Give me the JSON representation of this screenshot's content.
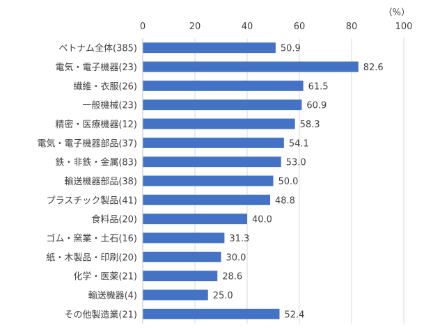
{
  "chart_data": {
    "type": "bar",
    "orientation": "horizontal",
    "unit_label": "（%）",
    "categories": [
      "ベトナム全体(385)",
      "電気・電子機器(23)",
      "繊維・衣服(26)",
      "一般機械(23)",
      "精密・医療機器(12)",
      "電気・電子機器部品(37)",
      "鉄・非鉄・金属(83)",
      "輸送機器部品(38)",
      "プラスチック製品(41)",
      "食料品(20)",
      "ゴム・窯業・土石(16)",
      "紙・木製品・印刷(20)",
      "化学・医薬(21)",
      "輸送機器(4)",
      "その他製造業(21)"
    ],
    "values": [
      50.9,
      82.6,
      61.5,
      60.9,
      58.3,
      54.1,
      53.0,
      50.0,
      48.8,
      40.0,
      31.3,
      30.0,
      28.6,
      25.0,
      52.4
    ],
    "value_labels": [
      "50.9",
      "82.6",
      "61.5",
      "60.9",
      "58.3",
      "54.1",
      "53.0",
      "50.0",
      "48.8",
      "40.0",
      "31.3",
      "30.0",
      "28.6",
      "25.0",
      "52.4"
    ],
    "xlim": [
      0,
      100
    ],
    "xticks": [
      0,
      20,
      40,
      60,
      80,
      100
    ],
    "grid": true,
    "bar_color": "#4472c4",
    "title": "",
    "xlabel": "",
    "ylabel": ""
  }
}
